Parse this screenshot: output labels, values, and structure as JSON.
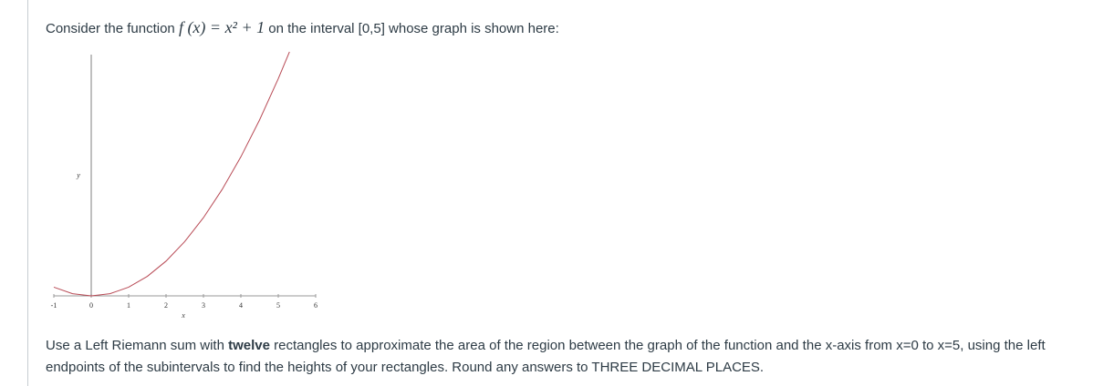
{
  "intro": {
    "before": "Consider the function",
    "math": "f (x) = x² + 1",
    "after": "on the interval [0,5] whose graph is shown here:"
  },
  "chart_data": {
    "type": "line",
    "xlabel": "x",
    "ylabel": "y",
    "x": [
      -1,
      -0.5,
      0,
      0.5,
      1,
      1.5,
      2,
      2.5,
      3,
      3.5,
      4,
      4.5,
      5,
      5.3
    ],
    "series": [
      {
        "name": "f(x) = x² + 1",
        "color": "#b84a55",
        "values": [
          2,
          1.25,
          1,
          1.25,
          2,
          3.25,
          5,
          7.25,
          10,
          13.25,
          17,
          21.25,
          26,
          29.09
        ]
      }
    ],
    "xlim": [
      -1,
      6
    ],
    "xticks": [
      -1,
      0,
      1,
      2,
      3,
      4,
      5,
      6
    ],
    "ylim": [
      1,
      29.5
    ]
  },
  "question": {
    "before": "Use a Left Riemann sum with",
    "bold": "twelve",
    "after": "rectangles to approximate the area of the region between the graph of the function and the x-axis from x=0 to x=5, using the left endpoints of the subintervals to find the heights of your rectangles. Round any answers to THREE DECIMAL PLACES."
  }
}
